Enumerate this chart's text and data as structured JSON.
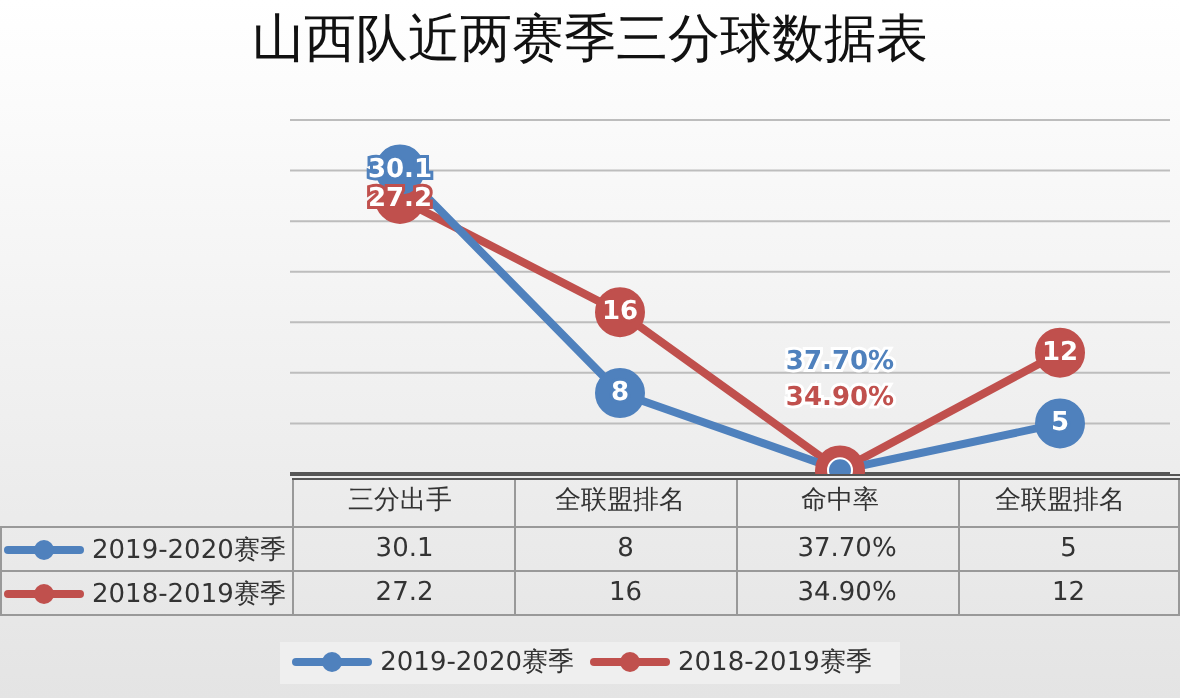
{
  "chart_data": {
    "type": "line",
    "title": "山西队近两赛季三分球数据表",
    "categories": [
      "三分出手",
      "全联盟排名",
      "命中率",
      "全联盟排名"
    ],
    "series": [
      {
        "name": "2019-2020赛季",
        "color": "#4f81bd",
        "values": [
          30.1,
          8,
          0.377,
          5
        ],
        "value_labels": [
          "30.1",
          "8",
          "37.70%",
          "5"
        ]
      },
      {
        "name": "2018-2019赛季",
        "color": "#c0504d",
        "values": [
          27.2,
          16,
          0.349,
          12
        ],
        "value_labels": [
          "27.2",
          "16",
          "34.90%",
          "12"
        ]
      }
    ],
    "ylim": [
      0,
      35
    ],
    "yticks": [
      {
        "value": 0,
        "label": null
      },
      {
        "value": 5,
        "label": null
      },
      {
        "value": 10,
        "label": null
      },
      {
        "value": 15,
        "label": null
      },
      {
        "value": 20,
        "label": null
      },
      {
        "value": 25,
        "label": null
      },
      {
        "value": 30,
        "label": null
      },
      {
        "value": 35,
        "label": null
      }
    ],
    "tick_labels": "x",
    "grid": "y",
    "marker": "circle",
    "line_style": "solid",
    "legend": "bottom"
  }
}
